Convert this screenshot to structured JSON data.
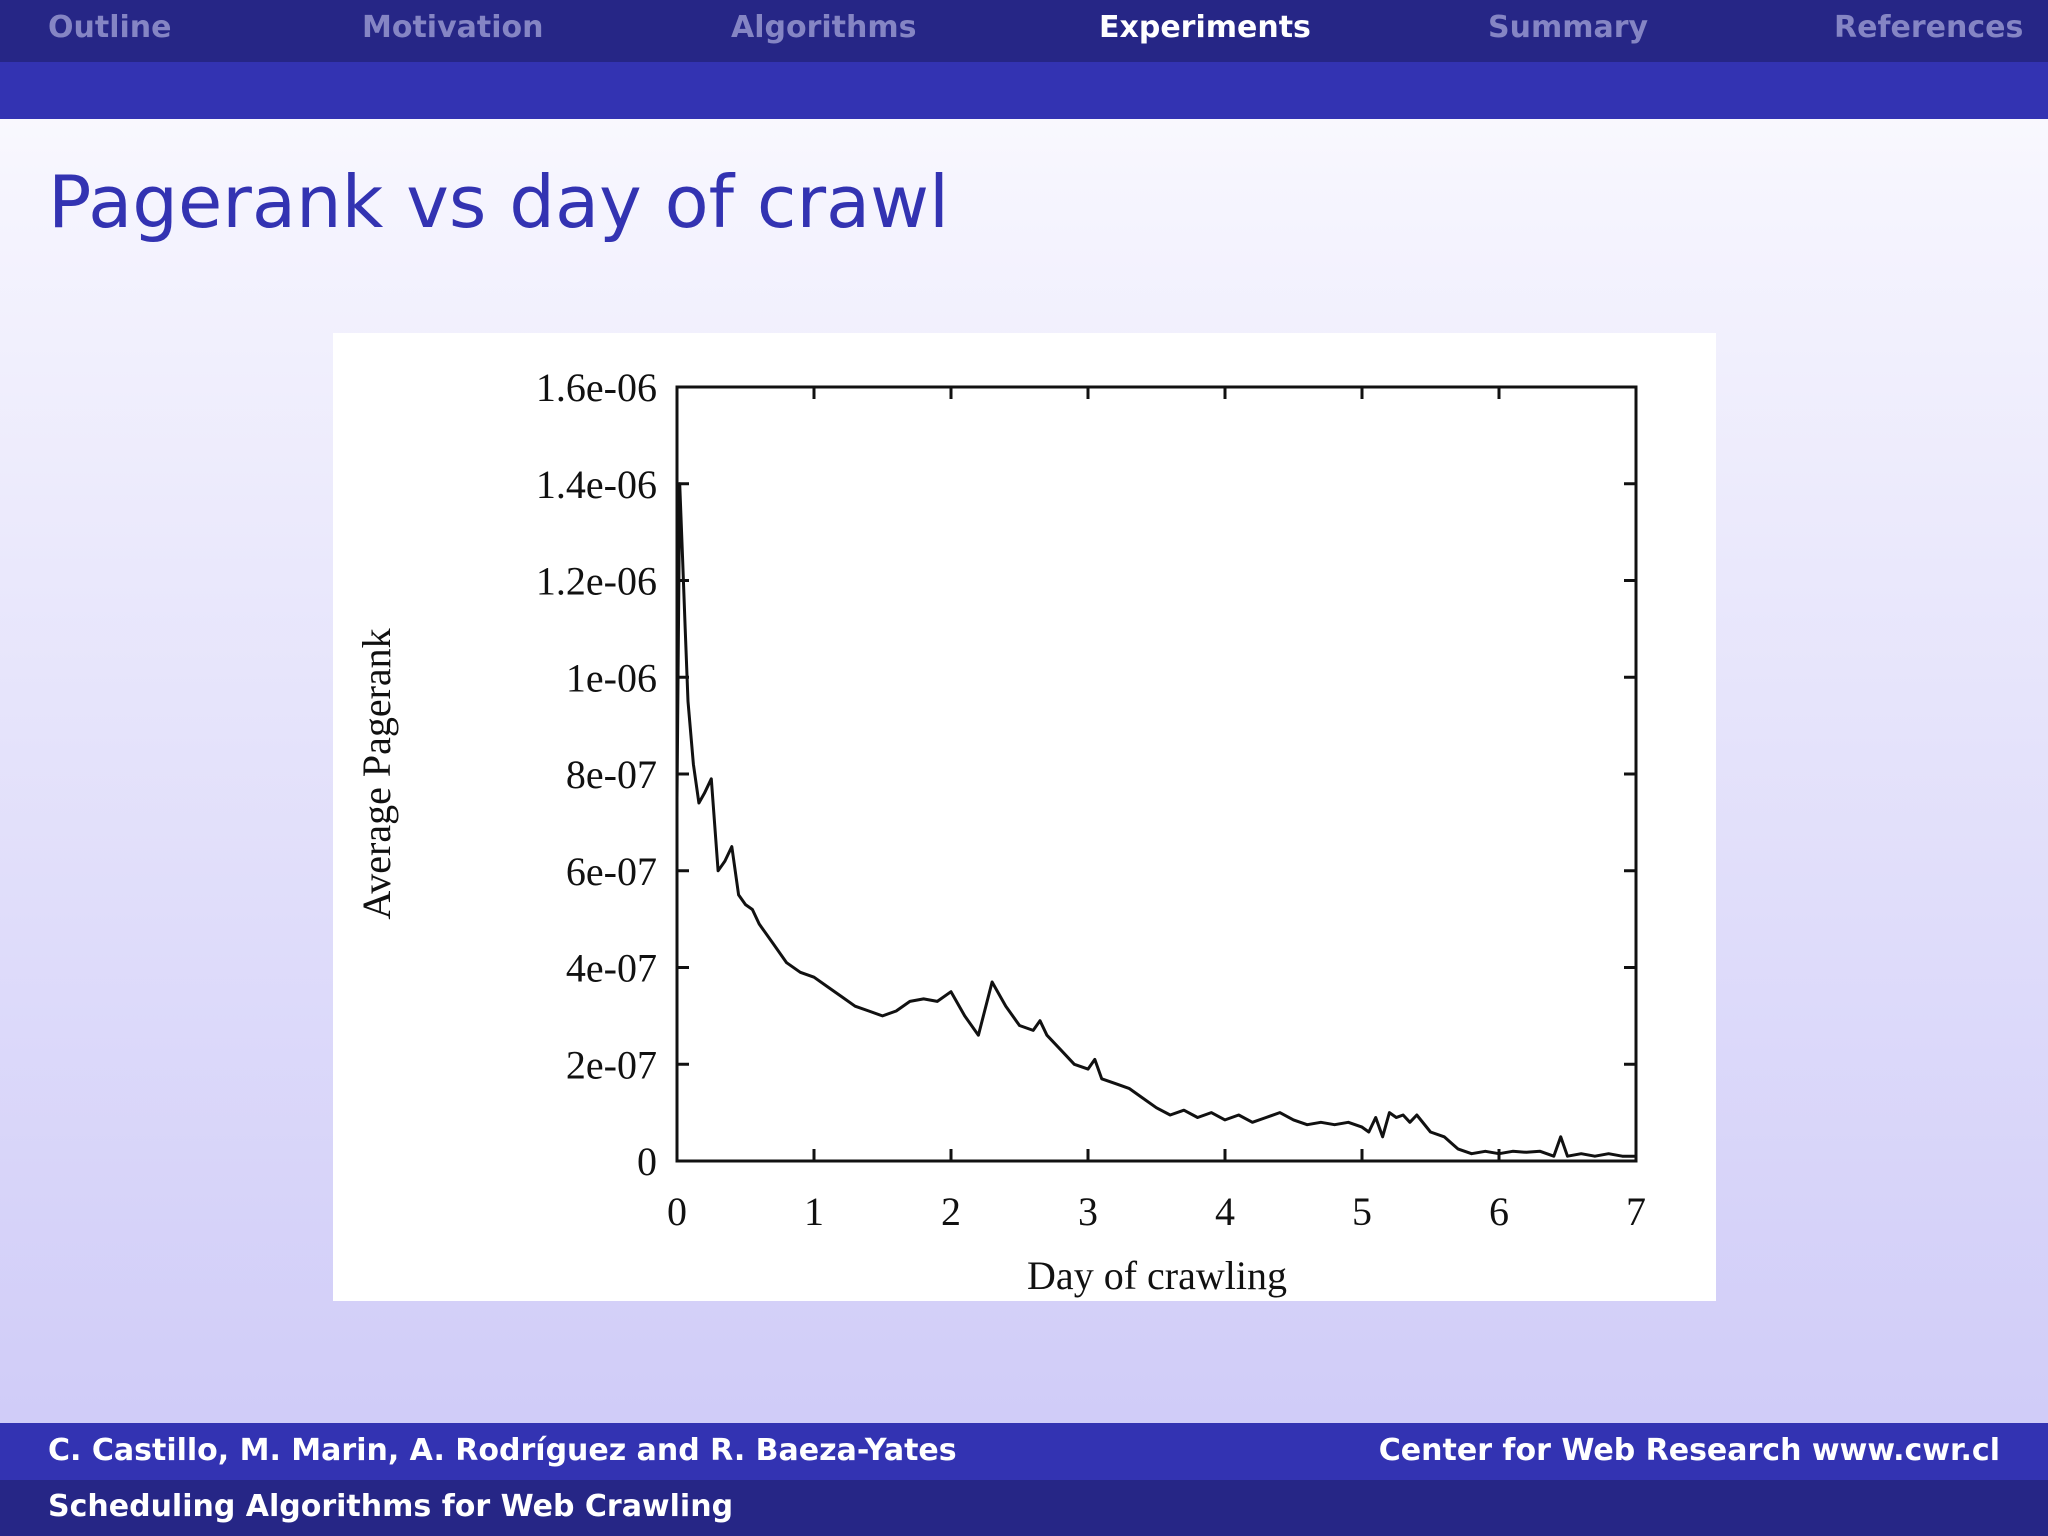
{
  "nav": {
    "items": [
      {
        "label": "Outline",
        "active": false
      },
      {
        "label": "Motivation",
        "active": false
      },
      {
        "label": "Algorithms",
        "active": false
      },
      {
        "label": "Experiments",
        "active": true
      },
      {
        "label": "Summary",
        "active": false
      },
      {
        "label": "References",
        "active": false
      }
    ]
  },
  "frame": {
    "title": "Pagerank vs day of crawl"
  },
  "footer": {
    "authors": "C. Castillo, M. Marin, A. Rodríguez and R. Baeza-Yates",
    "institution": "Center for Web Research www.cwr.cl",
    "talk_title": "Scheduling Algorithms for Web Crawling"
  },
  "colors": {
    "nav_bg": "#262686",
    "nav_sub_bg": "#3333b2",
    "nav_inactive": "#8585c4",
    "title": "#3333b2"
  },
  "chart_data": {
    "type": "line",
    "xlabel": "Day of crawling",
    "ylabel": "Average Pagerank",
    "xlim": [
      0,
      7
    ],
    "ylim": [
      0,
      1.6e-06
    ],
    "xticks": [
      "0",
      "1",
      "2",
      "3",
      "4",
      "5",
      "6",
      "7"
    ],
    "yticks": [
      "0",
      "2e-07",
      "4e-07",
      "6e-07",
      "8e-07",
      "1e-06",
      "1.2e-06",
      "1.4e-06",
      "1.6e-06"
    ],
    "grid": false,
    "series": [
      {
        "x": [
          0.0,
          0.02,
          0.04,
          0.06,
          0.08,
          0.12,
          0.16,
          0.2,
          0.25,
          0.3,
          0.35,
          0.4,
          0.45,
          0.5,
          0.55,
          0.6,
          0.7,
          0.8,
          0.9,
          1.0,
          1.1,
          1.2,
          1.3,
          1.4,
          1.5,
          1.6,
          1.7,
          1.8,
          1.9,
          2.0,
          2.1,
          2.2,
          2.3,
          2.4,
          2.5,
          2.6,
          2.65,
          2.7,
          2.8,
          2.9,
          3.0,
          3.05,
          3.1,
          3.2,
          3.3,
          3.4,
          3.5,
          3.6,
          3.7,
          3.8,
          3.9,
          4.0,
          4.1,
          4.2,
          4.3,
          4.4,
          4.5,
          4.6,
          4.7,
          4.8,
          4.9,
          5.0,
          5.05,
          5.1,
          5.15,
          5.2,
          5.25,
          5.3,
          5.35,
          5.4,
          5.5,
          5.6,
          5.7,
          5.8,
          5.9,
          6.0,
          6.1,
          6.2,
          6.3,
          6.4,
          6.45,
          6.5,
          6.6,
          6.7,
          6.8,
          6.9,
          7.0
        ],
        "y": [
          7.5e-07,
          1.4e-06,
          1.25e-06,
          1.1e-06,
          9.5e-07,
          8.2e-07,
          7.4e-07,
          7.6e-07,
          7.9e-07,
          6e-07,
          6.2e-07,
          6.5e-07,
          5.5e-07,
          5.3e-07,
          5.2e-07,
          4.9e-07,
          4.5e-07,
          4.1e-07,
          3.9e-07,
          3.8e-07,
          3.6e-07,
          3.4e-07,
          3.2e-07,
          3.1e-07,
          3e-07,
          3.1e-07,
          3.3e-07,
          3.35e-07,
          3.3e-07,
          3.5e-07,
          3e-07,
          2.6e-07,
          3.7e-07,
          3.2e-07,
          2.8e-07,
          2.7e-07,
          2.9e-07,
          2.6e-07,
          2.3e-07,
          2e-07,
          1.9e-07,
          2.1e-07,
          1.7e-07,
          1.6e-07,
          1.5e-07,
          1.3e-07,
          1.1e-07,
          9.5e-08,
          1.05e-07,
          9e-08,
          1e-07,
          8.5e-08,
          9.5e-08,
          8e-08,
          9e-08,
          1e-07,
          8.5e-08,
          7.5e-08,
          8e-08,
          7.5e-08,
          8e-08,
          7e-08,
          6e-08,
          9e-08,
          5e-08,
          1e-07,
          9e-08,
          9.5e-08,
          8e-08,
          9.5e-08,
          6e-08,
          5e-08,
          2.5e-08,
          1.5e-08,
          2e-08,
          1.5e-08,
          2e-08,
          1.8e-08,
          2e-08,
          1e-08,
          5e-08,
          1e-08,
          1.5e-08,
          1e-08,
          1.5e-08,
          1e-08,
          1e-08
        ]
      }
    ]
  }
}
